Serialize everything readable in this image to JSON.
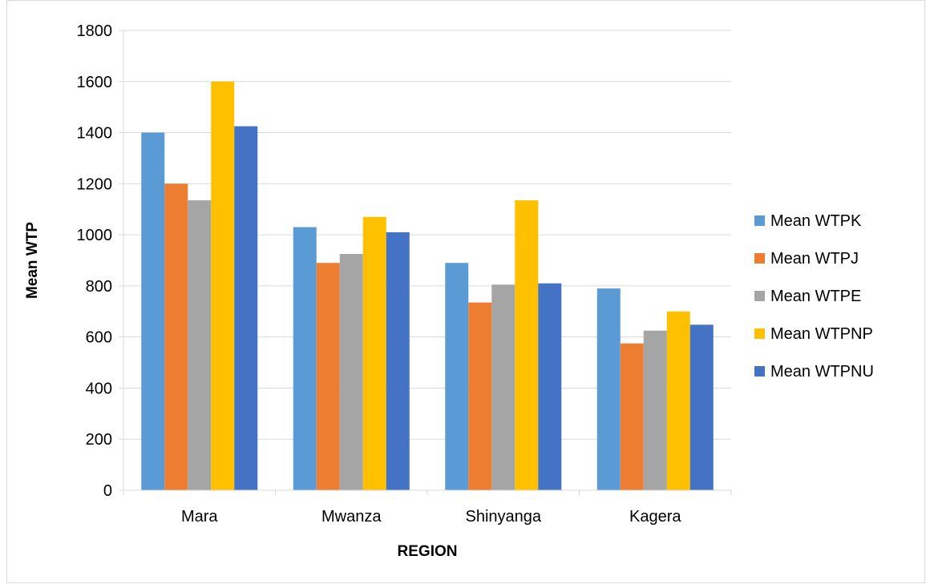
{
  "chart_data": {
    "type": "bar",
    "categories": [
      "Mara",
      "Mwanza",
      "Shinyanga",
      "Kagera"
    ],
    "series": [
      {
        "name": "Mean WTPK",
        "color": "#5B9BD5",
        "values": [
          1400,
          1030,
          890,
          790
        ]
      },
      {
        "name": "Mean WTPJ",
        "color": "#ED7D31",
        "values": [
          1200,
          890,
          735,
          575
        ]
      },
      {
        "name": "Mean WTPE",
        "color": "#A5A5A5",
        "values": [
          1135,
          925,
          805,
          625
        ]
      },
      {
        "name": "Mean WTPNP",
        "color": "#FFC000",
        "values": [
          1600,
          1070,
          1135,
          700
        ]
      },
      {
        "name": "Mean WTPNU",
        "color": "#4472C4",
        "values": [
          1425,
          1010,
          810,
          648
        ]
      }
    ],
    "title": "",
    "xlabel": "REGION",
    "ylabel": "Mean WTP",
    "ylim": [
      0,
      1800
    ],
    "yticks": [
      "0",
      "200",
      "400",
      "600",
      "800",
      "1000",
      "1200",
      "1400",
      "1600",
      "1800"
    ],
    "grid": true,
    "legend_position": "right"
  }
}
